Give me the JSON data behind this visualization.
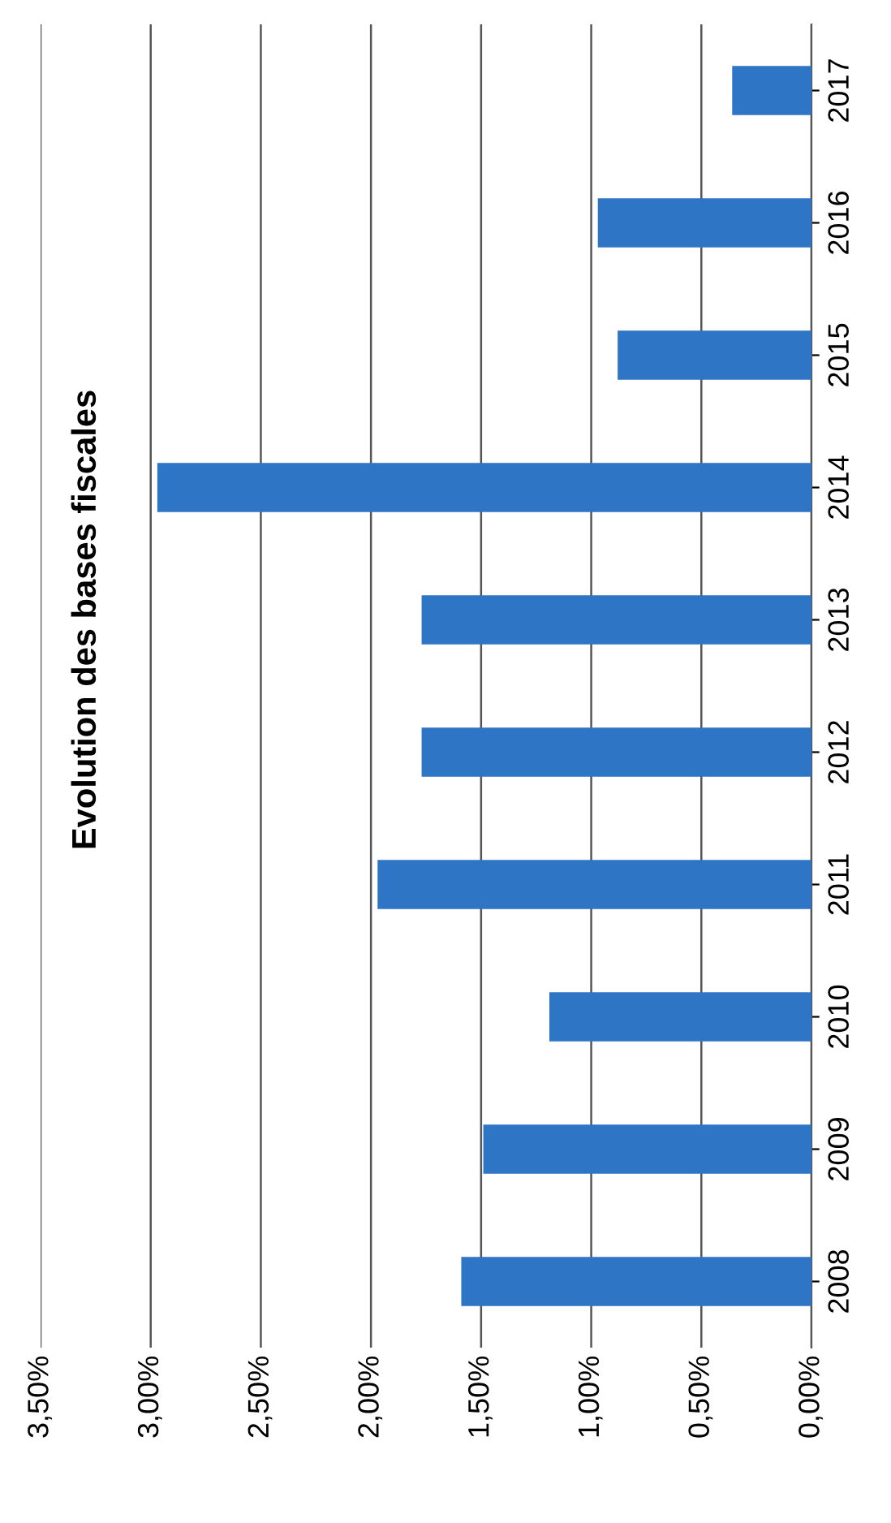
{
  "chart_data": {
    "type": "bar",
    "orientation": "horizontal",
    "title": "Evolution des bases fiscales",
    "categories": [
      "2017",
      "2016",
      "2015",
      "2014",
      "2013",
      "2012",
      "2011",
      "2010",
      "2009",
      "2008"
    ],
    "values": [
      0.36,
      0.97,
      0.88,
      2.97,
      1.77,
      1.77,
      1.97,
      1.19,
      1.49,
      1.59
    ],
    "color": "#2e75c6",
    "xlim": [
      3.5,
      0
    ],
    "xticks": [
      {
        "value": 0,
        "label": "0,00%"
      },
      {
        "value": 0.5,
        "label": "0,50%"
      },
      {
        "value": 1,
        "label": "1,00%"
      },
      {
        "value": 1.5,
        "label": "1,50%"
      },
      {
        "value": 2,
        "label": "2,00%"
      },
      {
        "value": 2.5,
        "label": "2,50%"
      },
      {
        "value": 3,
        "label": "3,00%"
      },
      {
        "value": 3.5,
        "label": "3,50%"
      }
    ],
    "grid": "x"
  }
}
